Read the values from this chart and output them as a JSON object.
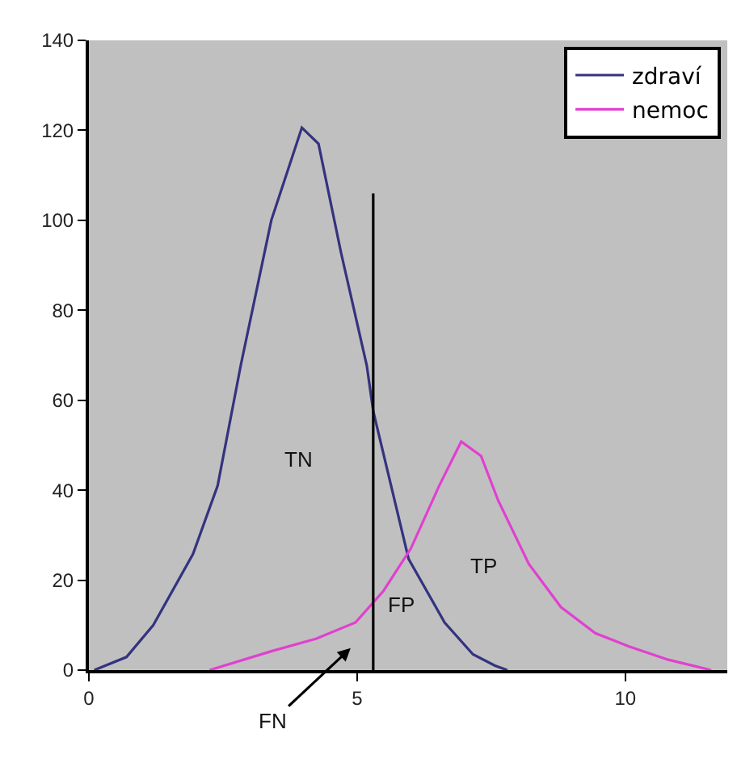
{
  "chart_data": {
    "type": "line",
    "xlim": [
      0,
      11.9
    ],
    "xticks": [
      0,
      5,
      10
    ],
    "ylim": [
      0,
      140
    ],
    "yticks": [
      0,
      20,
      40,
      60,
      80,
      100,
      120,
      140
    ],
    "grid": false,
    "legend": "top right",
    "marker": "none",
    "line_style": "solid",
    "series": [
      {
        "name": "zdraví",
        "color": "#33337f",
        "x": [
          0.1,
          0.7,
          1.2,
          1.94,
          2.4,
          2.83,
          3.4,
          3.97,
          4.28,
          4.7,
          5.18,
          5.3,
          5.96,
          6.63,
          7.16,
          7.57,
          7.8
        ],
        "values": [
          0,
          2.9,
          10,
          25.8,
          41,
          67.7,
          100,
          120.6,
          117,
          92.8,
          67.7,
          57.6,
          24.7,
          10.6,
          3.5,
          1,
          0
        ]
      },
      {
        "name": "nemoc",
        "color": "#e040d0",
        "x": [
          2.25,
          3.4,
          4.24,
          4.97,
          5.49,
          6.0,
          6.53,
          6.94,
          7.31,
          7.63,
          8.2,
          8.8,
          9.44,
          10.06,
          10.8,
          11.6
        ],
        "values": [
          0,
          4.2,
          7,
          10.6,
          17.6,
          27,
          41,
          50.8,
          47.6,
          37.7,
          23.6,
          14,
          8.2,
          5.3,
          2.3,
          0
        ]
      },
      {
        "color": "#000000",
        "x": [
          5.3,
          5.3
        ],
        "values": [
          0,
          106
        ]
      }
    ],
    "annotations": [
      "TN",
      "TP",
      "FP",
      "FN"
    ]
  }
}
